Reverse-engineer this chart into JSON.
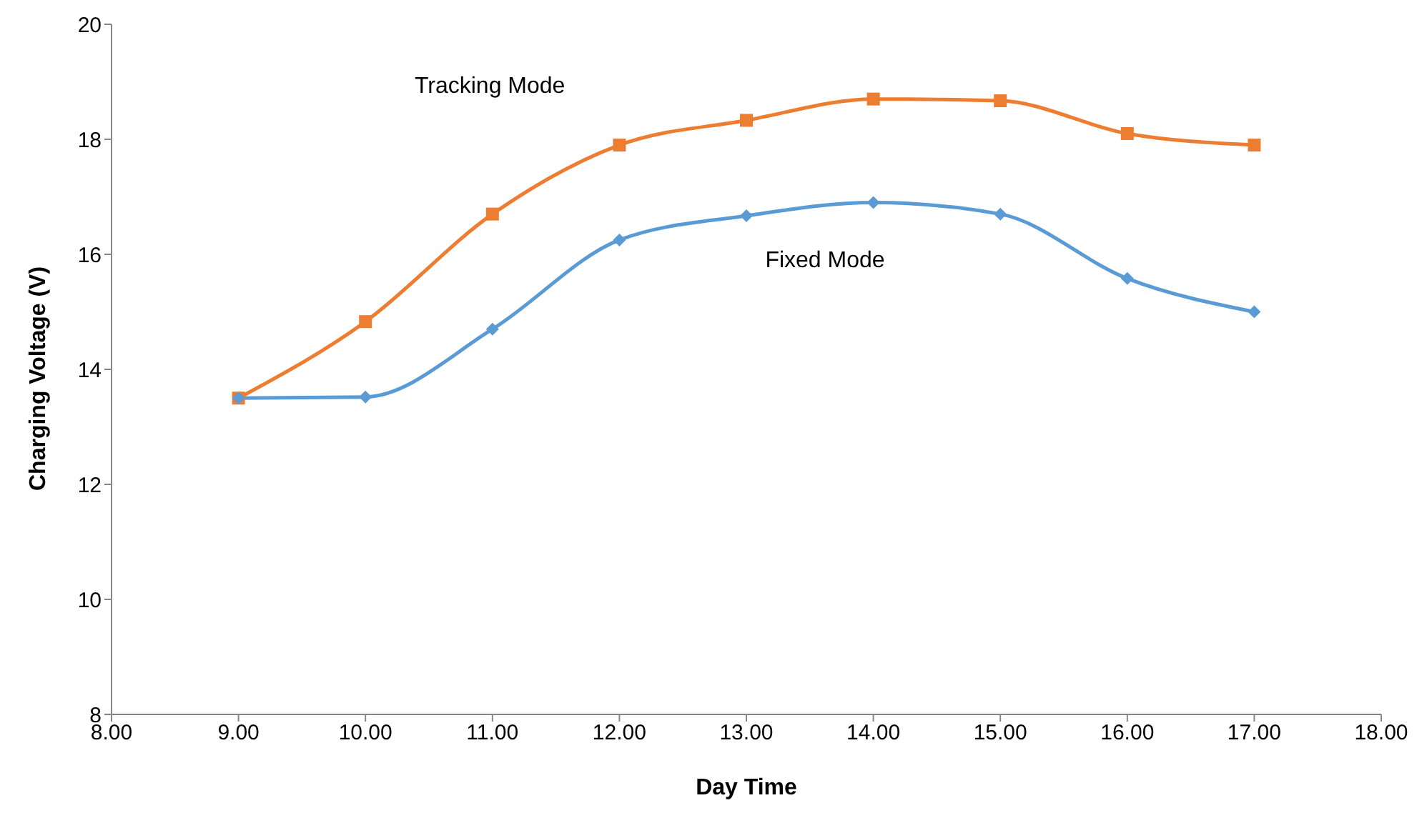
{
  "chart_data": {
    "type": "line",
    "xlabel": "Day Time",
    "ylabel": "Charging Voltage (V)",
    "x": [
      9,
      10,
      11,
      12,
      13,
      14,
      15,
      16,
      17
    ],
    "series": [
      {
        "name": "Fixed Mode",
        "color": "#5b9bd5",
        "marker": "diamond",
        "values": [
          13.5,
          13.52,
          14.7,
          16.25,
          16.67,
          16.9,
          16.7,
          15.58,
          15.0
        ]
      },
      {
        "name": "Tracking Mode",
        "color": "#ed7d31",
        "marker": "square",
        "values": [
          13.5,
          14.83,
          16.7,
          17.9,
          18.33,
          18.7,
          18.67,
          18.1,
          17.9
        ]
      }
    ],
    "xlim": [
      8,
      18
    ],
    "xticks": [
      {
        "value": 8,
        "label": "8.00"
      },
      {
        "value": 9,
        "label": "9.00"
      },
      {
        "value": 10,
        "label": "10.00"
      },
      {
        "value": 11,
        "label": "11.00"
      },
      {
        "value": 12,
        "label": "12.00"
      },
      {
        "value": 13,
        "label": "13.00"
      },
      {
        "value": 14,
        "label": "14.00"
      },
      {
        "value": 15,
        "label": "15.00"
      },
      {
        "value": 16,
        "label": "16.00"
      },
      {
        "value": 17,
        "label": "17.00"
      },
      {
        "value": 18,
        "label": "18.00"
      }
    ],
    "ylim": [
      8,
      20
    ],
    "yticks": [
      8,
      10,
      12,
      14,
      16,
      18,
      20
    ],
    "grid": false,
    "legend": false,
    "line_style": "solid"
  }
}
